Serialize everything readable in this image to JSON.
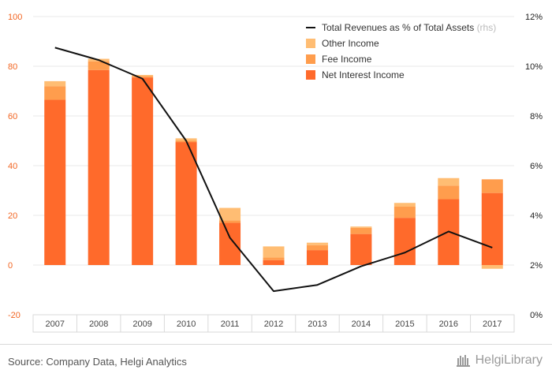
{
  "colors": {
    "net_interest": "#ff6a2b",
    "fee": "#ff9d4d",
    "other": "#ffbd73",
    "line": "#111111",
    "left_axis": "#f26522"
  },
  "chart_data": {
    "type": "bar",
    "stacked": true,
    "categories": [
      "2007",
      "2008",
      "2009",
      "2010",
      "2011",
      "2012",
      "2013",
      "2014",
      "2015",
      "2016",
      "2017"
    ],
    "series": [
      {
        "name": "Net Interest Income",
        "values": [
          66.5,
          78.5,
          75.5,
          49.5,
          17.0,
          2.0,
          6.0,
          12.5,
          19.0,
          26.5,
          29.0
        ]
      },
      {
        "name": "Fee Income",
        "values": [
          5.5,
          3.5,
          0.5,
          0.5,
          1.0,
          1.0,
          2.0,
          2.5,
          4.5,
          5.5,
          5.5
        ]
      },
      {
        "name": "Other Income",
        "values": [
          2.0,
          1.0,
          0.5,
          1.0,
          5.0,
          4.5,
          1.0,
          0.5,
          1.5,
          3.0,
          -1.5
        ]
      }
    ],
    "line_series": {
      "name": "Total Revenues as % of Total Assets",
      "suffix": "(rhs)",
      "values": [
        10.75,
        10.25,
        9.5,
        7.0,
        3.1,
        0.95,
        1.2,
        1.95,
        2.5,
        3.35,
        2.7
      ]
    },
    "y_left": {
      "min": -20,
      "max": 100,
      "ticks": [
        "-20",
        "0",
        "20",
        "40",
        "60",
        "80",
        "100"
      ]
    },
    "y_right": {
      "min": 0,
      "max": 12,
      "ticks": [
        "0%",
        "2%",
        "4%",
        "6%",
        "8%",
        "10%",
        "12%"
      ]
    },
    "grid": true,
    "legend": "top-right"
  },
  "footer": {
    "source": "Source: Company Data, Helgi Analytics",
    "brand": "HelgiLibrary"
  }
}
